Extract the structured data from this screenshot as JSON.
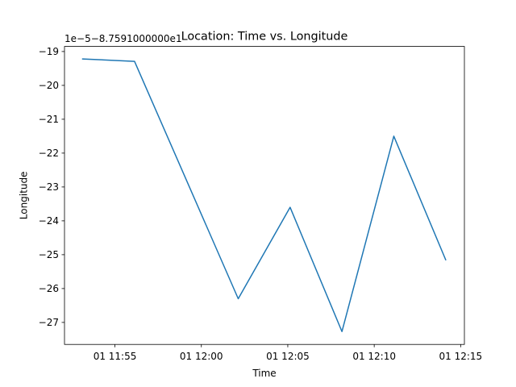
{
  "chart_data": {
    "type": "line",
    "title": "Location: Time vs. Longitude",
    "xlabel": "Time",
    "ylabel": "Longitude",
    "offset_label": "1e−5−8.7591000000e1",
    "line_color": "#1f77b4",
    "grid": false,
    "legend": "none",
    "x_ticks": [
      "01 11:55",
      "01 12:00",
      "01 12:05",
      "01 12:10",
      "01 12:15"
    ],
    "y_ticks": [
      "−19",
      "−20",
      "−21",
      "−22",
      "−23",
      "−24",
      "−25",
      "−26",
      "−27"
    ],
    "xlim": [
      "2023-01-01T11:52:05",
      "2023-01-01T12:15:13"
    ],
    "ylim": [
      -27.65,
      -18.85
    ],
    "series": [
      {
        "x": [
          "2023-01-01T11:53:08",
          "2023-01-01T11:56:08",
          "2023-01-01T12:02:08",
          "2023-01-01T12:05:08",
          "2023-01-01T12:08:08",
          "2023-01-01T12:11:08",
          "2023-01-01T12:14:08"
        ],
        "y": [
          -19.22,
          -19.29,
          -26.3,
          -23.6,
          -27.27,
          -21.5,
          -25.15
        ]
      }
    ]
  }
}
